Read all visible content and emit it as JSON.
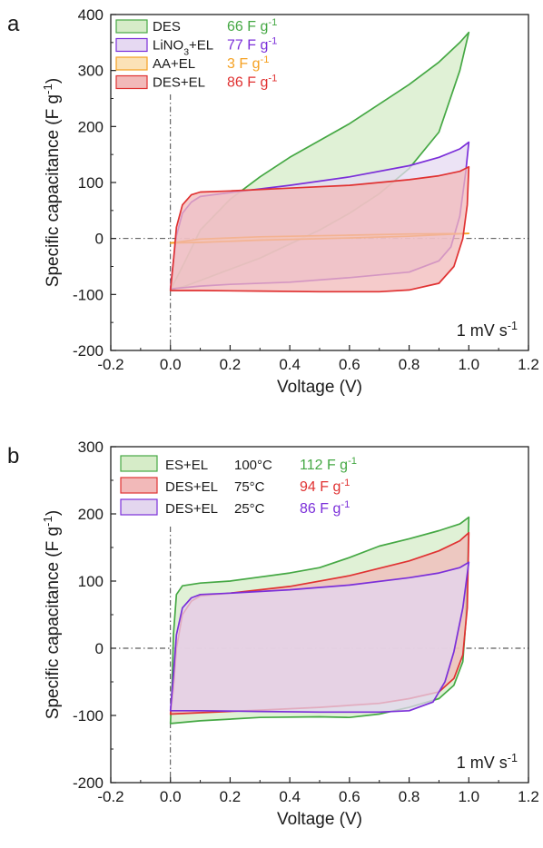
{
  "chart_data": [
    {
      "type": "line",
      "panel_label": "a",
      "xlabel": "Voltage (V)",
      "ylabel": "Specific capacitance (F g⁻¹)",
      "xlim": [
        -0.2,
        1.2
      ],
      "ylim": [
        -200,
        400
      ],
      "xticks": [
        "-0.2",
        "0.0",
        "0.2",
        "0.4",
        "0.6",
        "0.8",
        "1.0",
        "1.2"
      ],
      "yticks": [
        "-200",
        "-100",
        "0",
        "100",
        "200",
        "300",
        "400"
      ],
      "annotation": "1 mV s⁻¹",
      "grid": false,
      "reference_lines": [
        "x = 0 (dash-dot)",
        "y = 0 (dash-dot)"
      ],
      "legend_position": "top-left",
      "series": [
        {
          "name": "DES",
          "value_label": "66 F g⁻¹",
          "color": "#45a844",
          "fill": "#d6ecc8",
          "upper": [
            [
              0.0,
              -92
            ],
            [
              0.05,
              -40
            ],
            [
              0.1,
              15
            ],
            [
              0.2,
              70
            ],
            [
              0.3,
              110
            ],
            [
              0.4,
              145
            ],
            [
              0.5,
              175
            ],
            [
              0.6,
              205
            ],
            [
              0.7,
              240
            ],
            [
              0.8,
              275
            ],
            [
              0.9,
              315
            ],
            [
              0.97,
              350
            ],
            [
              1.0,
              368
            ]
          ],
          "lower": [
            [
              0.0,
              -92
            ],
            [
              0.05,
              -85
            ],
            [
              0.1,
              -75
            ],
            [
              0.2,
              -55
            ],
            [
              0.3,
              -35
            ],
            [
              0.4,
              -10
            ],
            [
              0.5,
              15
            ],
            [
              0.6,
              45
            ],
            [
              0.7,
              80
            ],
            [
              0.8,
              125
            ],
            [
              0.9,
              190
            ],
            [
              0.97,
              300
            ],
            [
              1.0,
              368
            ]
          ]
        },
        {
          "name": "LiNO₃+EL",
          "value_label": "77 F g⁻¹",
          "color": "#7b2fd9",
          "fill": "#e6d9f2",
          "upper": [
            [
              0.0,
              -90
            ],
            [
              0.01,
              -40
            ],
            [
              0.02,
              5
            ],
            [
              0.04,
              45
            ],
            [
              0.07,
              65
            ],
            [
              0.1,
              75
            ],
            [
              0.2,
              82
            ],
            [
              0.4,
              95
            ],
            [
              0.6,
              110
            ],
            [
              0.8,
              130
            ],
            [
              0.9,
              145
            ],
            [
              0.97,
              160
            ],
            [
              1.0,
              172
            ]
          ],
          "lower": [
            [
              0.0,
              -90
            ],
            [
              0.1,
              -85
            ],
            [
              0.2,
              -82
            ],
            [
              0.4,
              -78
            ],
            [
              0.6,
              -70
            ],
            [
              0.8,
              -60
            ],
            [
              0.9,
              -40
            ],
            [
              0.94,
              -15
            ],
            [
              0.97,
              40
            ],
            [
              0.99,
              120
            ],
            [
              1.0,
              172
            ]
          ]
        },
        {
          "name": "AA+EL",
          "value_label": "3 F g⁻¹",
          "color": "#f5a122",
          "fill": "#fbe2b7",
          "upper": [
            [
              0.0,
              -8
            ],
            [
              0.1,
              -1
            ],
            [
              0.3,
              3
            ],
            [
              0.6,
              6
            ],
            [
              0.8,
              8
            ],
            [
              1.0,
              9
            ]
          ],
          "lower": [
            [
              0.0,
              -8
            ],
            [
              0.1,
              -7
            ],
            [
              0.3,
              -3
            ],
            [
              0.6,
              1
            ],
            [
              0.8,
              4
            ],
            [
              1.0,
              9
            ]
          ]
        },
        {
          "name": "DES+EL",
          "value_label": "86 F g⁻¹",
          "color": "#e03232",
          "fill": "#f2b9b9",
          "upper": [
            [
              0.0,
              -93
            ],
            [
              0.01,
              -40
            ],
            [
              0.02,
              20
            ],
            [
              0.04,
              60
            ],
            [
              0.07,
              78
            ],
            [
              0.1,
              83
            ],
            [
              0.2,
              85
            ],
            [
              0.4,
              90
            ],
            [
              0.6,
              95
            ],
            [
              0.8,
              105
            ],
            [
              0.9,
              112
            ],
            [
              0.97,
              120
            ],
            [
              1.0,
              128
            ]
          ],
          "lower": [
            [
              0.0,
              -93
            ],
            [
              0.1,
              -93
            ],
            [
              0.3,
              -94
            ],
            [
              0.5,
              -95
            ],
            [
              0.7,
              -95
            ],
            [
              0.8,
              -92
            ],
            [
              0.9,
              -80
            ],
            [
              0.95,
              -50
            ],
            [
              0.98,
              0
            ],
            [
              0.995,
              60
            ],
            [
              1.0,
              128
            ]
          ]
        }
      ]
    },
    {
      "type": "line",
      "panel_label": "b",
      "xlabel": "Voltage (V)",
      "ylabel": "Specific capacitance (F g⁻¹)",
      "xlim": [
        -0.2,
        1.2
      ],
      "ylim": [
        -200,
        300
      ],
      "xticks": [
        "-0.2",
        "0.0",
        "0.2",
        "0.4",
        "0.6",
        "0.8",
        "1.0",
        "1.2"
      ],
      "yticks": [
        "-200",
        "-100",
        "0",
        "100",
        "200",
        "300"
      ],
      "annotation": "1 mV s⁻¹",
      "grid": false,
      "reference_lines": [
        "x = 0 (dash-dot)",
        "y = 0 (dash-dot)"
      ],
      "legend_position": "top-left",
      "series": [
        {
          "name": "ES+EL",
          "temperature": "100°C",
          "value_label": "112 F g⁻¹",
          "color": "#45a844",
          "fill": "#d6ecc8",
          "upper": [
            [
              0.0,
              -112
            ],
            [
              0.005,
              -60
            ],
            [
              0.01,
              20
            ],
            [
              0.02,
              80
            ],
            [
              0.04,
              93
            ],
            [
              0.1,
              97
            ],
            [
              0.2,
              100
            ],
            [
              0.4,
              112
            ],
            [
              0.5,
              120
            ],
            [
              0.6,
              135
            ],
            [
              0.7,
              152
            ],
            [
              0.8,
              163
            ],
            [
              0.9,
              175
            ],
            [
              0.97,
              185
            ],
            [
              1.0,
              195
            ]
          ],
          "lower": [
            [
              0.0,
              -112
            ],
            [
              0.1,
              -108
            ],
            [
              0.3,
              -103
            ],
            [
              0.5,
              -102
            ],
            [
              0.6,
              -103
            ],
            [
              0.7,
              -98
            ],
            [
              0.8,
              -88
            ],
            [
              0.9,
              -75
            ],
            [
              0.95,
              -55
            ],
            [
              0.98,
              -20
            ],
            [
              0.99,
              40
            ],
            [
              1.0,
              195
            ]
          ]
        },
        {
          "name": "DES+EL",
          "temperature": "75°C",
          "value_label": "94 F g⁻¹",
          "color": "#e03232",
          "fill": "#f2b9b9",
          "upper": [
            [
              0.0,
              -98
            ],
            [
              0.01,
              -60
            ],
            [
              0.02,
              0
            ],
            [
              0.04,
              50
            ],
            [
              0.07,
              70
            ],
            [
              0.1,
              78
            ],
            [
              0.2,
              82
            ],
            [
              0.4,
              92
            ],
            [
              0.6,
              108
            ],
            [
              0.8,
              130
            ],
            [
              0.9,
              145
            ],
            [
              0.97,
              160
            ],
            [
              1.0,
              172
            ]
          ],
          "lower": [
            [
              0.0,
              -98
            ],
            [
              0.1,
              -96
            ],
            [
              0.3,
              -92
            ],
            [
              0.5,
              -88
            ],
            [
              0.7,
              -82
            ],
            [
              0.8,
              -75
            ],
            [
              0.9,
              -65
            ],
            [
              0.95,
              -45
            ],
            [
              0.98,
              -10
            ],
            [
              0.995,
              60
            ],
            [
              1.0,
              172
            ]
          ]
        },
        {
          "name": "DES+EL",
          "temperature": "25°C",
          "value_label": "86 F g⁻¹",
          "color": "#7b2fd9",
          "fill": "#e3d6ef",
          "upper": [
            [
              0.0,
              -93
            ],
            [
              0.01,
              -40
            ],
            [
              0.02,
              20
            ],
            [
              0.04,
              60
            ],
            [
              0.07,
              75
            ],
            [
              0.1,
              80
            ],
            [
              0.2,
              82
            ],
            [
              0.4,
              87
            ],
            [
              0.6,
              94
            ],
            [
              0.8,
              105
            ],
            [
              0.9,
              112
            ],
            [
              0.97,
              120
            ],
            [
              1.0,
              128
            ]
          ],
          "lower": [
            [
              0.0,
              -93
            ],
            [
              0.1,
              -93
            ],
            [
              0.3,
              -94
            ],
            [
              0.5,
              -95
            ],
            [
              0.7,
              -95
            ],
            [
              0.8,
              -93
            ],
            [
              0.88,
              -80
            ],
            [
              0.92,
              -50
            ],
            [
              0.95,
              -5
            ],
            [
              0.98,
              60
            ],
            [
              1.0,
              128
            ]
          ]
        }
      ]
    }
  ]
}
